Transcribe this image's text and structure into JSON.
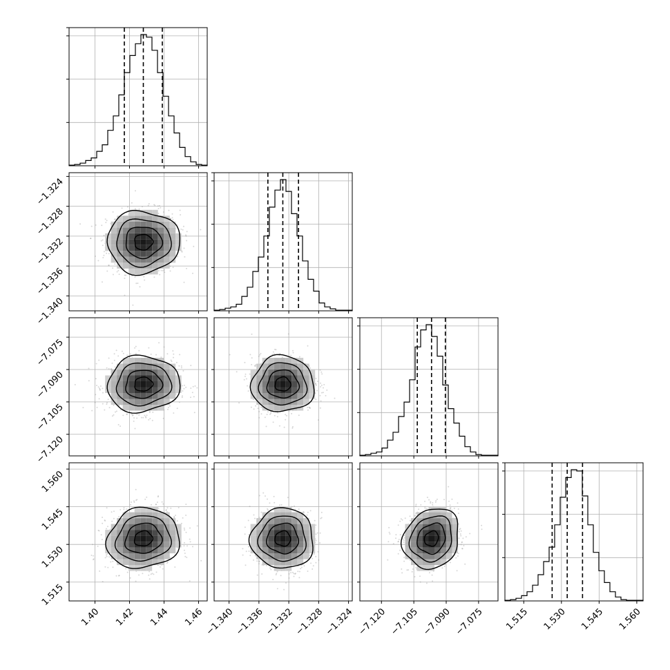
{
  "chart_data": {
    "type": "corner",
    "grid": true,
    "parameters": [
      {
        "range": [
          1.385,
          1.465
        ],
        "ticks": [
          1.4,
          1.42,
          1.44,
          1.46
        ],
        "tick_labels": [
          "1.40",
          "1.42",
          "1.44",
          "1.46"
        ],
        "quantiles": [
          1.417,
          1.428,
          1.439
        ],
        "mean": 1.428,
        "std": 0.0105
      },
      {
        "range": [
          -1.342,
          -1.3235
        ],
        "ticks": [
          -1.34,
          -1.336,
          -1.332,
          -1.328,
          -1.324
        ],
        "tick_labels": [
          "−1.340",
          "−1.336",
          "−1.332",
          "−1.328",
          "−1.324"
        ],
        "quantiles": [
          -1.3348,
          -1.3328,
          -1.3307
        ],
        "mean": -1.3328,
        "std": 0.0021
      },
      {
        "range": [
          -7.13,
          -7.066
        ],
        "ticks": [
          -7.12,
          -7.105,
          -7.09,
          -7.075
        ],
        "tick_labels": [
          "−7.120",
          "−7.105",
          "−7.090",
          "−7.075"
        ],
        "quantiles": [
          -7.1034,
          -7.0968,
          -7.0904
        ],
        "mean": -7.0968,
        "std": 0.0065
      },
      {
        "range": [
          1.5075,
          1.5625
        ],
        "ticks": [
          1.515,
          1.53,
          1.545,
          1.56
        ],
        "tick_labels": [
          "1.515",
          "1.530",
          "1.545",
          "1.560"
        ],
        "quantiles": [
          1.5263,
          1.5323,
          1.5384
        ],
        "mean": 1.5323,
        "std": 0.006
      }
    ],
    "histograms": [
      {
        "param": 0,
        "counts": [
          0.5,
          1,
          2,
          4,
          6,
          11,
          16,
          27,
          38,
          54,
          71,
          84,
          93,
          100,
          98,
          88,
          71,
          53,
          38,
          25,
          14,
          7,
          3,
          1,
          0.5
        ]
      },
      {
        "param": 1,
        "counts": [
          0.5,
          1,
          2,
          3,
          5,
          11,
          18,
          30,
          41,
          57,
          79,
          92,
          100,
          91,
          74,
          57,
          38,
          24,
          15,
          6,
          3,
          1.5,
          0.5,
          0.5,
          0.5
        ]
      },
      {
        "param": 2,
        "counts": [
          0.5,
          1,
          2,
          3,
          6,
          12,
          18,
          30,
          41,
          58,
          83,
          96,
          100,
          91,
          76,
          54,
          36,
          25,
          15,
          7,
          3,
          1,
          0.5,
          0.5,
          0.5
        ]
      },
      {
        "param": 3,
        "counts": [
          0.5,
          1,
          2,
          4,
          7,
          12,
          20,
          30,
          41,
          58,
          79,
          94,
          100,
          99,
          80,
          58,
          37,
          23,
          14,
          7,
          3,
          1,
          0.5,
          0.5,
          0.5
        ]
      }
    ],
    "pairs": [
      {
        "x_param": 0,
        "y_param": 1,
        "correlation": 0.0
      },
      {
        "x_param": 0,
        "y_param": 2,
        "correlation": 0.05
      },
      {
        "x_param": 1,
        "y_param": 2,
        "correlation": 0.0
      },
      {
        "x_param": 0,
        "y_param": 3,
        "correlation": 0.08
      },
      {
        "x_param": 1,
        "y_param": 3,
        "correlation": 0.0
      },
      {
        "x_param": 2,
        "y_param": 3,
        "correlation": 0.15
      }
    ],
    "contour_levels_sigma": [
      0.5,
      1.0,
      1.5,
      2.0
    ],
    "colors": {
      "line": "#000000",
      "grid": "#b0b0b0",
      "scatter": "#8c8c8c"
    }
  }
}
